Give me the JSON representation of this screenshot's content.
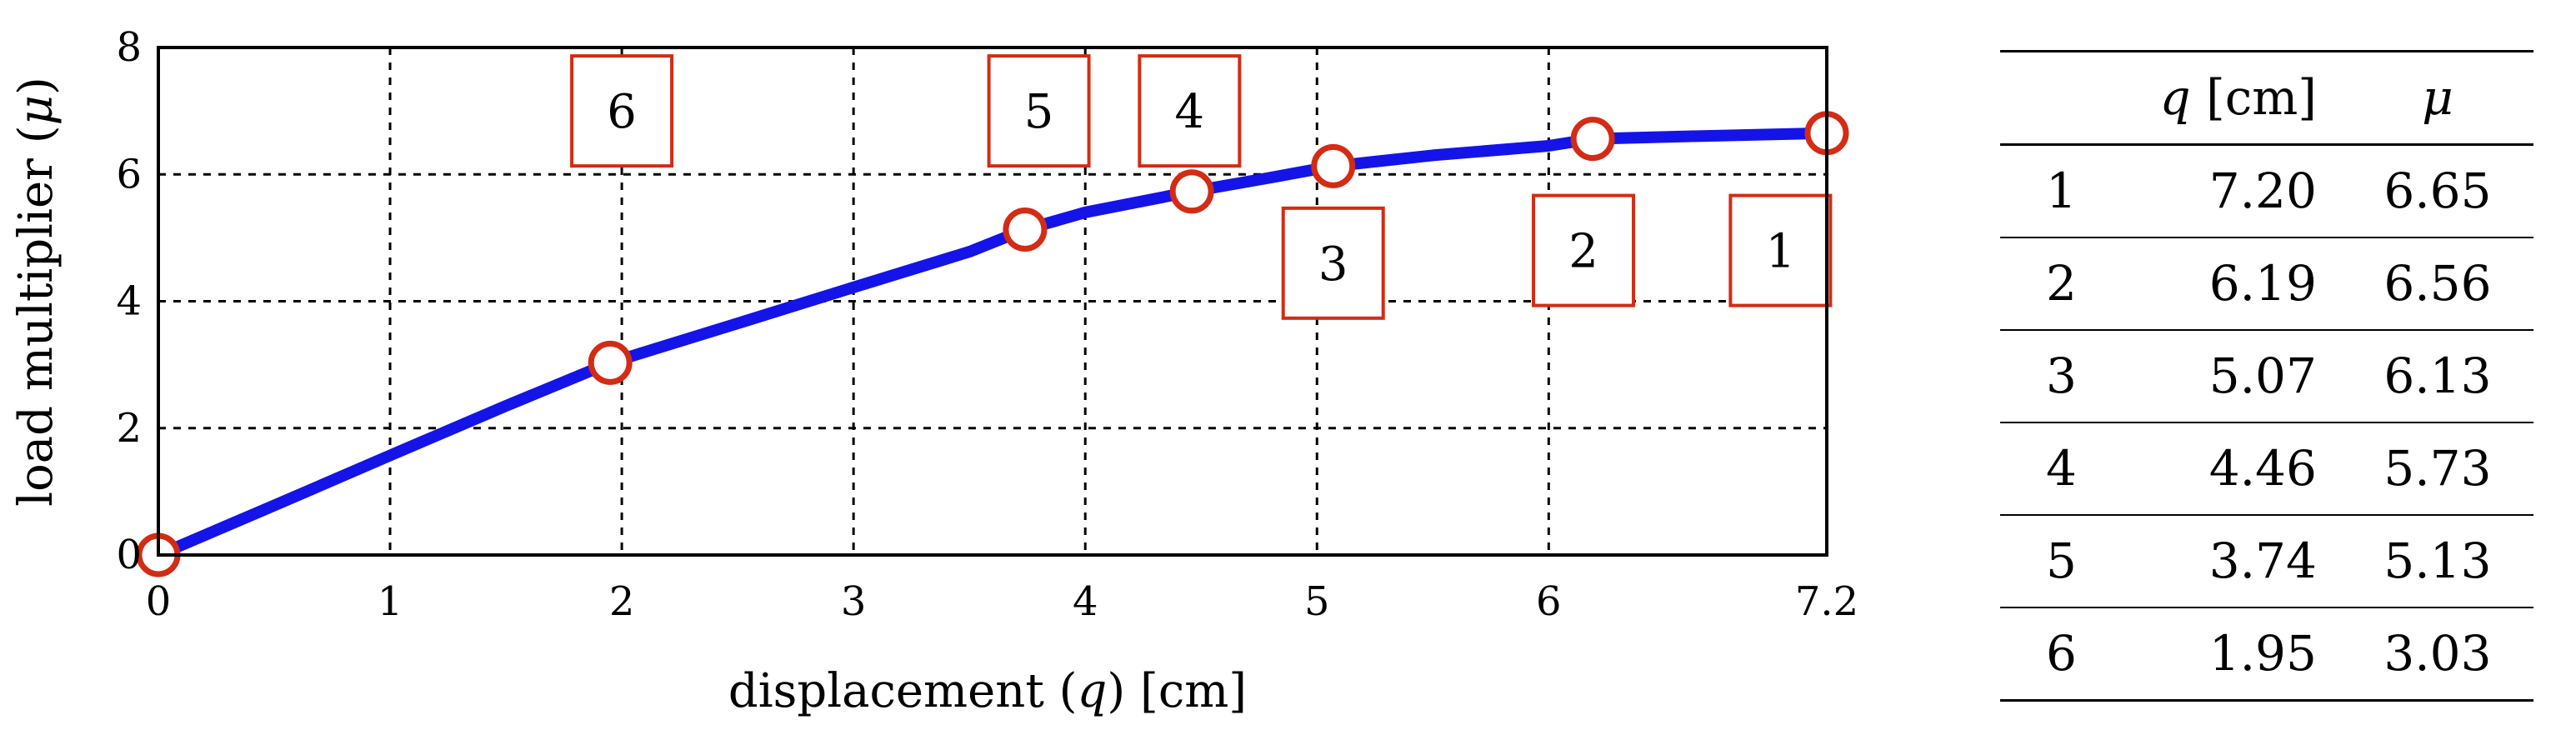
{
  "chart_data": {
    "type": "line",
    "xlabel": {
      "pre": "displacement (",
      "var": "q",
      "post": ") [cm]"
    },
    "ylabel": {
      "pre": "load multiplier (",
      "var": "μ",
      "post": ")"
    },
    "xlim": [
      0,
      7.2
    ],
    "ylim": [
      0,
      8
    ],
    "x_ticks": [
      0,
      1,
      2,
      3,
      4,
      5,
      6,
      7.2
    ],
    "y_ticks": [
      0,
      2,
      4,
      6,
      8
    ],
    "grid": true,
    "curve": {
      "x": [
        0,
        0.5,
        1,
        1.5,
        1.95,
        2.5,
        3,
        3.5,
        3.74,
        4,
        4.46,
        4.8,
        5.07,
        5.5,
        6,
        6.19,
        6.6,
        7.2
      ],
      "y": [
        0,
        0.78,
        1.57,
        2.35,
        3.03,
        3.65,
        4.22,
        4.78,
        5.13,
        5.4,
        5.73,
        5.95,
        6.13,
        6.3,
        6.45,
        6.56,
        6.6,
        6.65
      ]
    },
    "points": [
      {
        "x": 0,
        "y": 0
      },
      {
        "x": 1.95,
        "y": 3.03
      },
      {
        "x": 3.74,
        "y": 5.13
      },
      {
        "x": 4.46,
        "y": 5.73
      },
      {
        "x": 5.07,
        "y": 6.13
      },
      {
        "x": 6.19,
        "y": 6.56
      },
      {
        "x": 7.2,
        "y": 6.65
      }
    ],
    "annotations": [
      {
        "label": "6",
        "x": 2.0,
        "y": 7.0
      },
      {
        "label": "5",
        "x": 3.8,
        "y": 7.0
      },
      {
        "label": "4",
        "x": 4.45,
        "y": 7.0
      },
      {
        "label": "3",
        "x": 5.07,
        "y": 4.6
      },
      {
        "label": "2",
        "x": 6.15,
        "y": 4.8
      },
      {
        "label": "1",
        "x": 7.0,
        "y": 4.8
      }
    ],
    "colors": {
      "curve": "#1414e8",
      "marker": "#d42b14",
      "box": "#d42b14",
      "grid": "#000000"
    }
  },
  "table": {
    "header": {
      "q_var": "q",
      "q_unit": "[cm]",
      "mu": "μ"
    },
    "rows": [
      {
        "index": "1",
        "q": "7.20",
        "mu": "6.65"
      },
      {
        "index": "2",
        "q": "6.19",
        "mu": "6.56"
      },
      {
        "index": "3",
        "q": "5.07",
        "mu": "6.13"
      },
      {
        "index": "4",
        "q": "4.46",
        "mu": "5.73"
      },
      {
        "index": "5",
        "q": "3.74",
        "mu": "5.13"
      },
      {
        "index": "6",
        "q": "1.95",
        "mu": "3.03"
      }
    ]
  }
}
